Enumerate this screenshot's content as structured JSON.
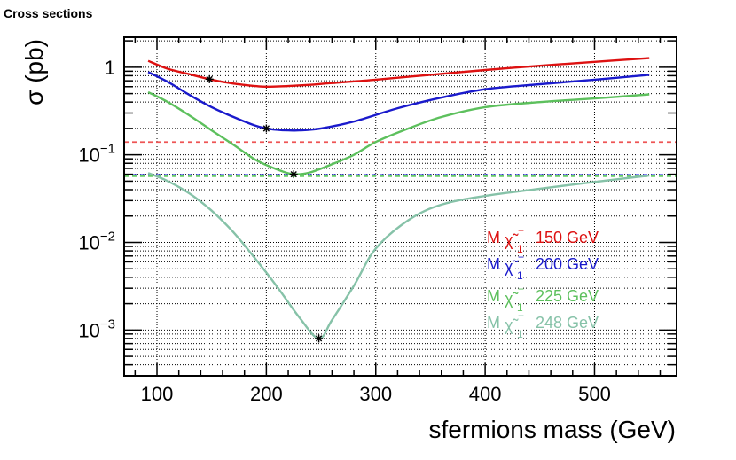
{
  "page": {
    "title": "Cross sections"
  },
  "chart_data": {
    "type": "line",
    "title": "",
    "xlabel": "sfermions mass (GeV)",
    "ylabel": "σ (pb)",
    "xlim": [
      70,
      575
    ],
    "ylim": [
      0.0003,
      2.2
    ],
    "yscale": "log",
    "grid": true,
    "legend_position": "right",
    "x_ticks": [
      {
        "value": 100,
        "label": "100"
      },
      {
        "value": 200,
        "label": "200"
      },
      {
        "value": 300,
        "label": "300"
      },
      {
        "value": 400,
        "label": "400"
      },
      {
        "value": 500,
        "label": "500"
      }
    ],
    "y_ticks": [
      {
        "value": 1,
        "base": "1",
        "exp": ""
      },
      {
        "value": 0.1,
        "base": "10",
        "exp": "−1"
      },
      {
        "value": 0.01,
        "base": "10",
        "exp": "−2"
      },
      {
        "value": 0.001,
        "base": "10",
        "exp": "−3"
      }
    ],
    "series": [
      {
        "name": "150 GeV",
        "color": "#dd1111",
        "x": [
          92,
          110,
          130,
          150,
          170,
          190,
          200,
          220,
          240,
          260,
          300,
          350,
          400,
          450,
          500,
          550
        ],
        "y": [
          1.18,
          0.96,
          0.83,
          0.72,
          0.65,
          0.61,
          0.6,
          0.61,
          0.63,
          0.66,
          0.72,
          0.82,
          0.93,
          1.04,
          1.15,
          1.27
        ]
      },
      {
        "name": "200 GeV",
        "color": "#1a1acc",
        "x": [
          92,
          110,
          130,
          150,
          170,
          190,
          200,
          210,
          220,
          230,
          250,
          280,
          320,
          360,
          400,
          450,
          500,
          550
        ],
        "y": [
          0.88,
          0.68,
          0.48,
          0.35,
          0.27,
          0.215,
          0.2,
          0.193,
          0.19,
          0.19,
          0.2,
          0.24,
          0.34,
          0.45,
          0.56,
          0.64,
          0.72,
          0.82
        ]
      },
      {
        "name": "225 GeV",
        "color": "#5dc05d",
        "x": [
          92,
          110,
          130,
          150,
          170,
          190,
          210,
          225,
          240,
          260,
          280,
          300,
          330,
          360,
          400,
          450,
          500,
          550
        ],
        "y": [
          0.52,
          0.4,
          0.28,
          0.19,
          0.13,
          0.088,
          0.068,
          0.06,
          0.063,
          0.078,
          0.1,
          0.14,
          0.2,
          0.27,
          0.35,
          0.4,
          0.44,
          0.49
        ]
      },
      {
        "name": "248 GeV",
        "color": "#86c2a8",
        "x": [
          92,
          110,
          130,
          150,
          170,
          190,
          210,
          230,
          248,
          260,
          280,
          300,
          330,
          360,
          400,
          450,
          500,
          550
        ],
        "y": [
          0.062,
          0.05,
          0.036,
          0.023,
          0.013,
          0.0065,
          0.0031,
          0.0014,
          0.0008,
          0.0013,
          0.0032,
          0.0085,
          0.018,
          0.027,
          0.034,
          0.041,
          0.049,
          0.058
        ]
      }
    ],
    "markers": [
      {
        "x": 148,
        "y": 0.73
      },
      {
        "x": 200,
        "y": 0.2
      },
      {
        "x": 225,
        "y": 0.06
      },
      {
        "x": 248,
        "y": 0.0008
      }
    ],
    "reference_lines": [
      {
        "y": 0.14,
        "color": "#ee5555"
      },
      {
        "y": 0.059,
        "color": "#3a3aee"
      },
      {
        "y": 0.057,
        "color": "#66cc66"
      }
    ],
    "legend": [
      {
        "prefix": "M",
        "symbol": "χ̃",
        "sup": "+",
        "sub": "1",
        "value": "150 GeV",
        "color": "#dd1111"
      },
      {
        "prefix": "M",
        "symbol": "χ̃",
        "sup": "+",
        "sub": "1",
        "value": "200 GeV",
        "color": "#1a1acc"
      },
      {
        "prefix": "M",
        "symbol": "χ̃",
        "sup": "+",
        "sub": "1",
        "value": "225 GeV",
        "color": "#5dc05d"
      },
      {
        "prefix": "M",
        "symbol": "χ̃",
        "sup": "+",
        "sub": "1",
        "value": "248 GeV",
        "color": "#86c2a8"
      }
    ]
  }
}
